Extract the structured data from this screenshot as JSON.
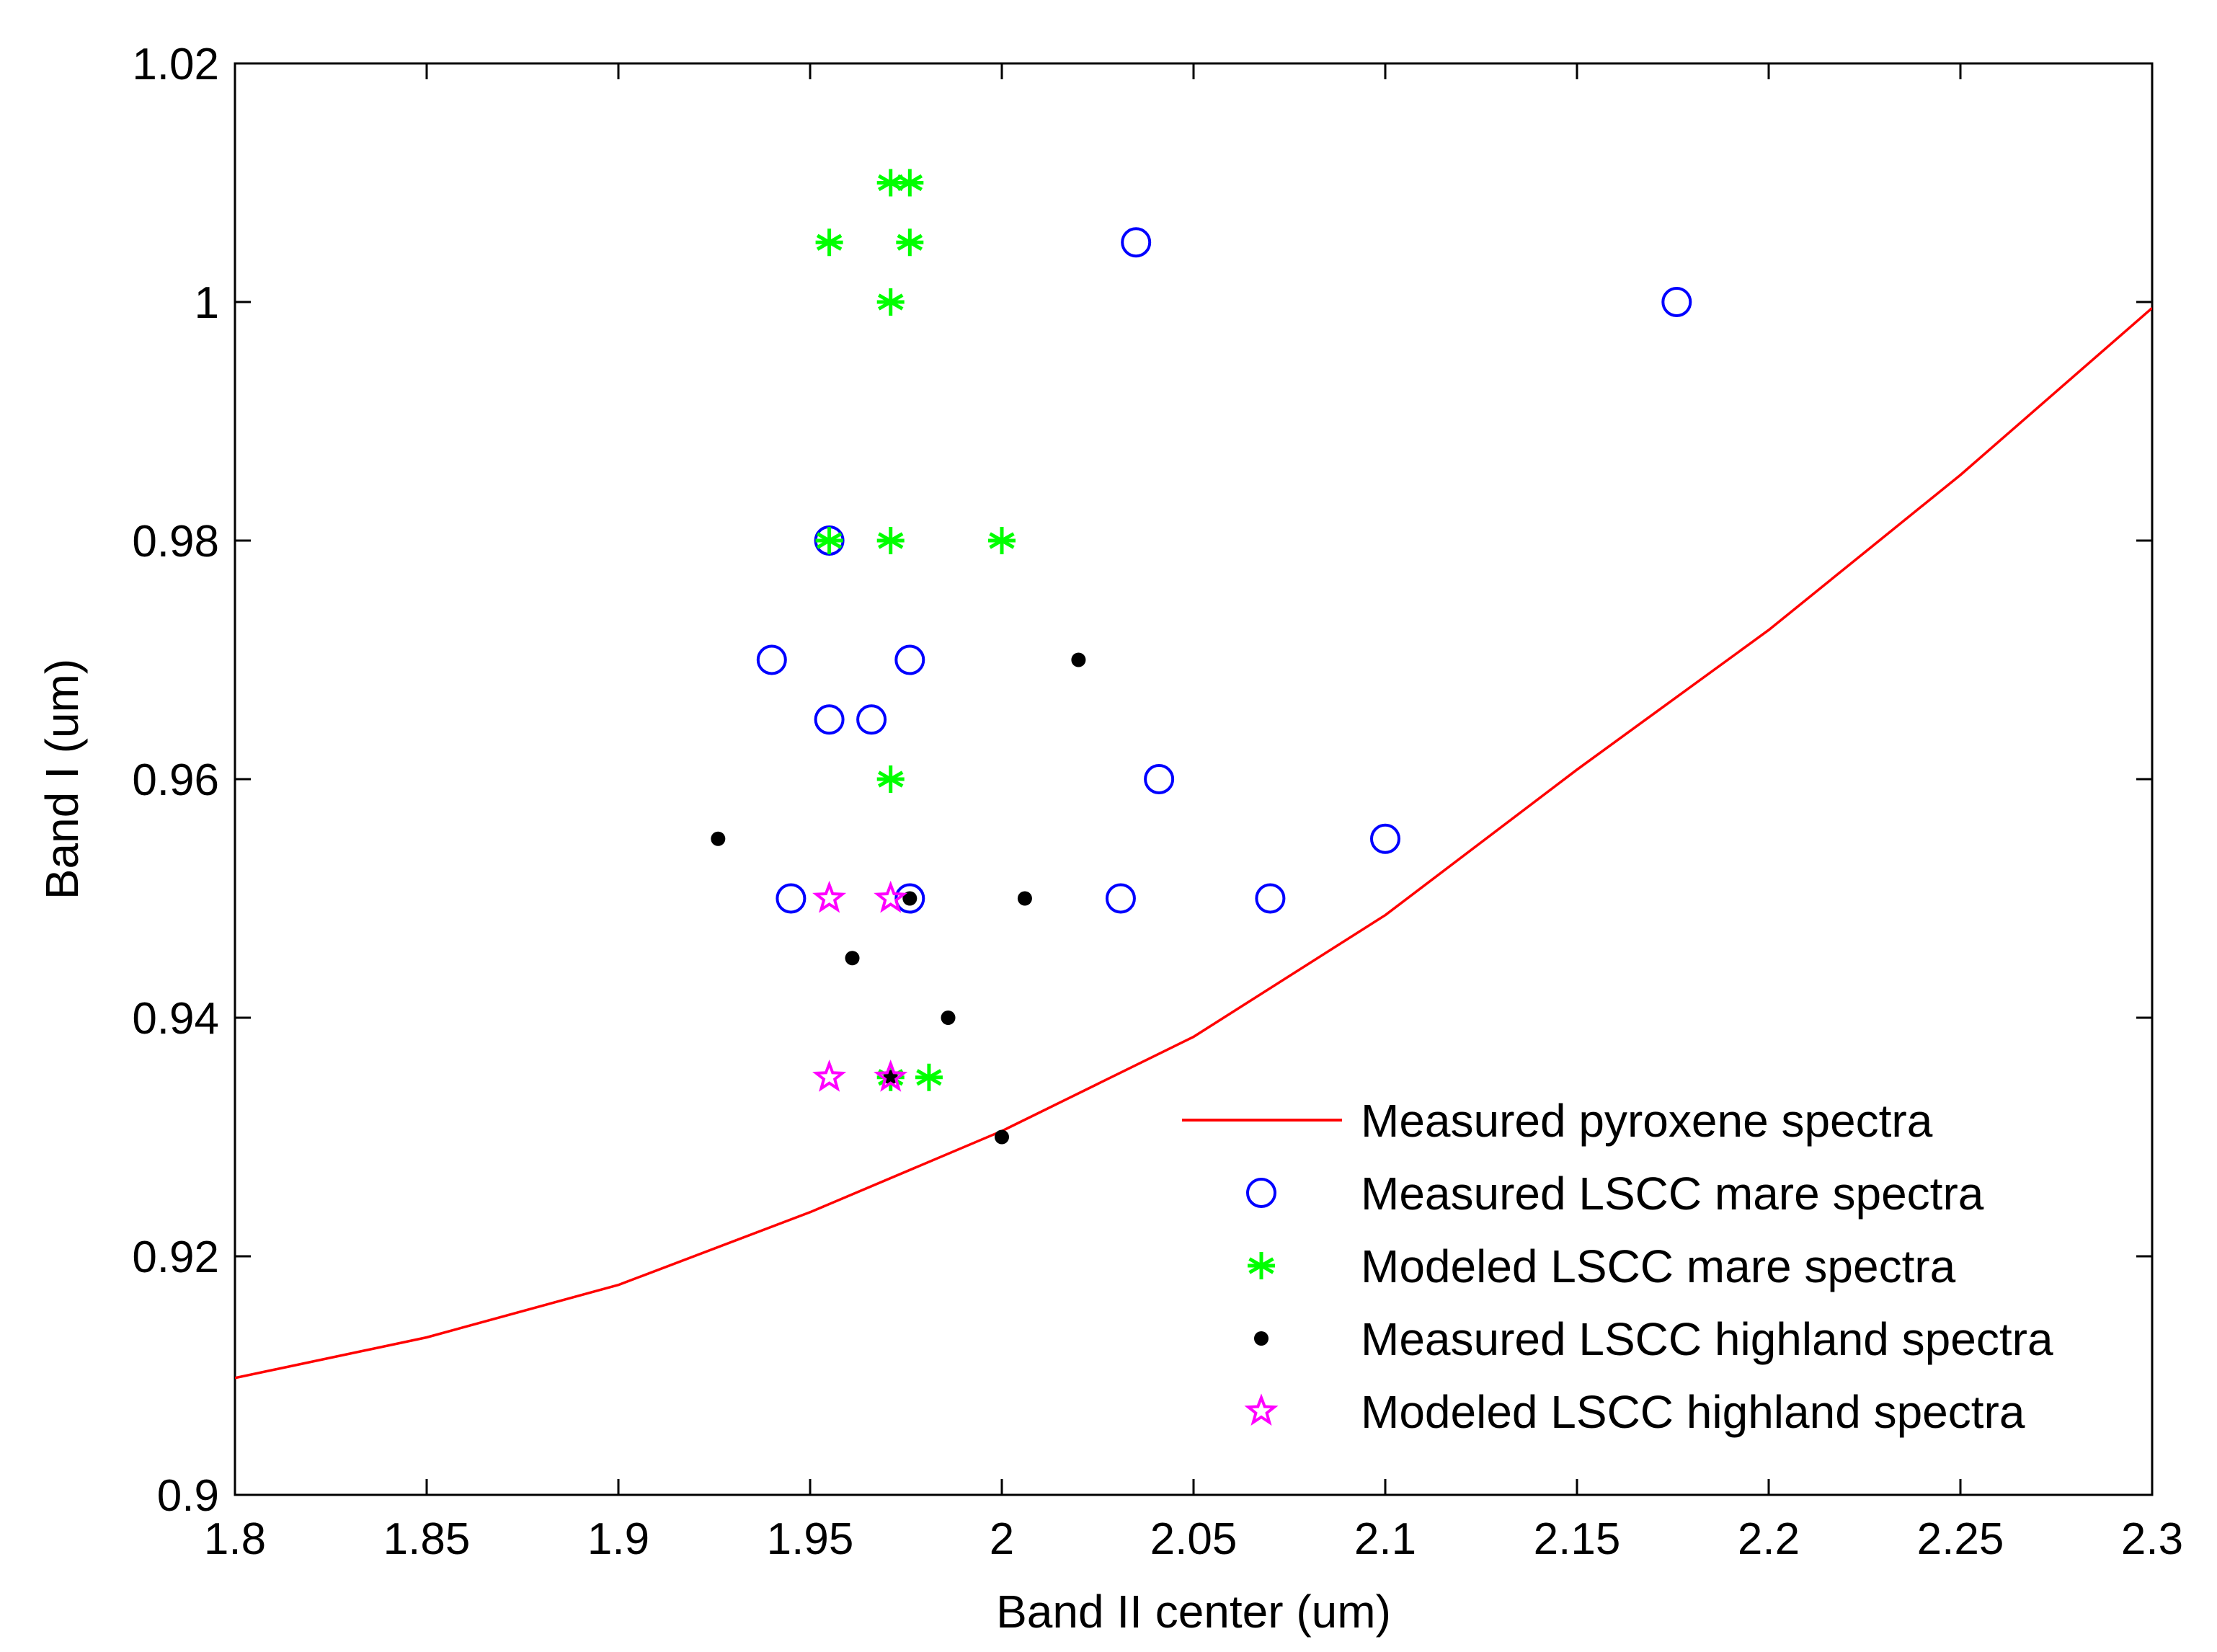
{
  "chart_data": {
    "type": "scatter",
    "title": "",
    "xlabel": "Band II center (um)",
    "ylabel": "Band I (um)",
    "xlim": [
      1.8,
      2.3
    ],
    "ylim": [
      0.9,
      1.02
    ],
    "xticks": [
      1.8,
      1.85,
      1.9,
      1.95,
      2.0,
      2.05,
      2.1,
      2.15,
      2.2,
      2.25,
      2.3
    ],
    "xtick_labels": [
      "1.8",
      "1.85",
      "1.9",
      "1.95",
      "2",
      "2.05",
      "2.1",
      "2.15",
      "2.2",
      "2.25",
      "2.3"
    ],
    "yticks": [
      0.9,
      0.92,
      0.94,
      0.96,
      0.98,
      1.0,
      1.02
    ],
    "ytick_labels": [
      "0.9",
      "0.92",
      "0.94",
      "0.96",
      "0.98",
      "1",
      "1.02"
    ],
    "grid": false,
    "legend_position": "bottom-right",
    "series": [
      {
        "name": "Measured pyroxene spectra",
        "kind": "line",
        "color": "#ff0000",
        "x": [
          1.8,
          1.85,
          1.9,
          1.95,
          2.0,
          2.05,
          2.1,
          2.15,
          2.2,
          2.25,
          2.3
        ],
        "y": [
          0.9098,
          0.9132,
          0.9176,
          0.9237,
          0.9305,
          0.9384,
          0.9486,
          0.9608,
          0.9725,
          0.9855,
          0.9995
        ]
      },
      {
        "name": "Measured LSCC mare spectra",
        "kind": "circle",
        "color": "#0000ff",
        "x": [
          2.035,
          2.176,
          1.955,
          1.94,
          1.976,
          1.955,
          1.966,
          2.041,
          2.1,
          1.945,
          1.976,
          2.031,
          2.07
        ],
        "y": [
          1.005,
          1.0,
          0.98,
          0.97,
          0.97,
          0.965,
          0.965,
          0.96,
          0.955,
          0.95,
          0.95,
          0.95,
          0.95
        ]
      },
      {
        "name": "Modeled LSCC mare spectra",
        "kind": "asterisk",
        "color": "#00ff00",
        "x": [
          1.971,
          1.976,
          1.955,
          1.976,
          1.971,
          1.955,
          1.971,
          2.0,
          1.971,
          1.971,
          1.981
        ],
        "y": [
          1.01,
          1.01,
          1.005,
          1.005,
          1.0,
          0.98,
          0.98,
          0.98,
          0.96,
          0.935,
          0.935
        ]
      },
      {
        "name": "Measured LSCC highland spectra",
        "kind": "dot",
        "color": "#000000",
        "x": [
          2.02,
          1.926,
          1.976,
          2.006,
          1.961,
          1.986,
          1.971,
          2.0
        ],
        "y": [
          0.97,
          0.955,
          0.95,
          0.95,
          0.945,
          0.94,
          0.935,
          0.93
        ]
      },
      {
        "name": "Modeled LSCC highland spectra",
        "kind": "star",
        "color": "#ff00ff",
        "x": [
          1.955,
          1.971,
          1.955,
          1.971
        ],
        "y": [
          0.95,
          0.95,
          0.935,
          0.935
        ]
      }
    ]
  }
}
